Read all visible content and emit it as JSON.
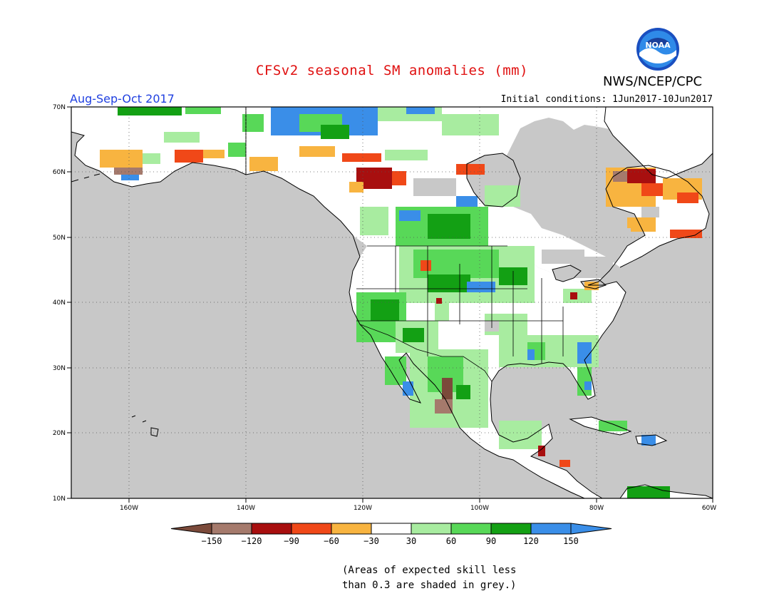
{
  "title": "CFSv2 seasonal SM anomalies (mm)",
  "agency": "NWS/NCEP/CPC",
  "logo_text": "NOAA",
  "season": "Aug-Sep-Oct 2017",
  "initial_conditions": "Initial conditions: 1Jun2017-10Jun2017",
  "note_line1": "(Areas of expected skill less",
  "note_line2": "than 0.3 are shaded in grey.)",
  "lat_labels": [
    "70N",
    "60N",
    "50N",
    "40N",
    "30N",
    "20N",
    "10N"
  ],
  "lon_labels": [
    "160W",
    "140W",
    "120W",
    "100W",
    "80W",
    "60W"
  ],
  "legend": {
    "ticks": [
      "-150",
      "-120",
      "-90",
      "-60",
      "-30",
      "30",
      "60",
      "90",
      "120",
      "150"
    ],
    "colors": [
      "#7b4a3a",
      "#a57a6c",
      "#a80f0f",
      "#f04818",
      "#f8b440",
      "#ffffff",
      "#a8eca0",
      "#58d858",
      "#13a014",
      "#3a8ee8",
      "#3a8ee8"
    ]
  },
  "colors": {
    "low_skill": "#c8c8c8",
    "title": "#e01010",
    "season": "#2040e0"
  },
  "anomaly_patches": [
    {
      "region": "Alaska south coast",
      "category": "-30"
    },
    {
      "region": "Hudson Bay west",
      "category": "-90"
    },
    {
      "region": "Labrador/Quebec",
      "category": "-90"
    },
    {
      "region": "Canadian Prairies",
      "category": "90"
    },
    {
      "region": "US Rockies / Great Plains",
      "category": "60"
    },
    {
      "region": "US Southeast",
      "category": "60"
    },
    {
      "region": "Mexico",
      "category": "60"
    }
  ]
}
